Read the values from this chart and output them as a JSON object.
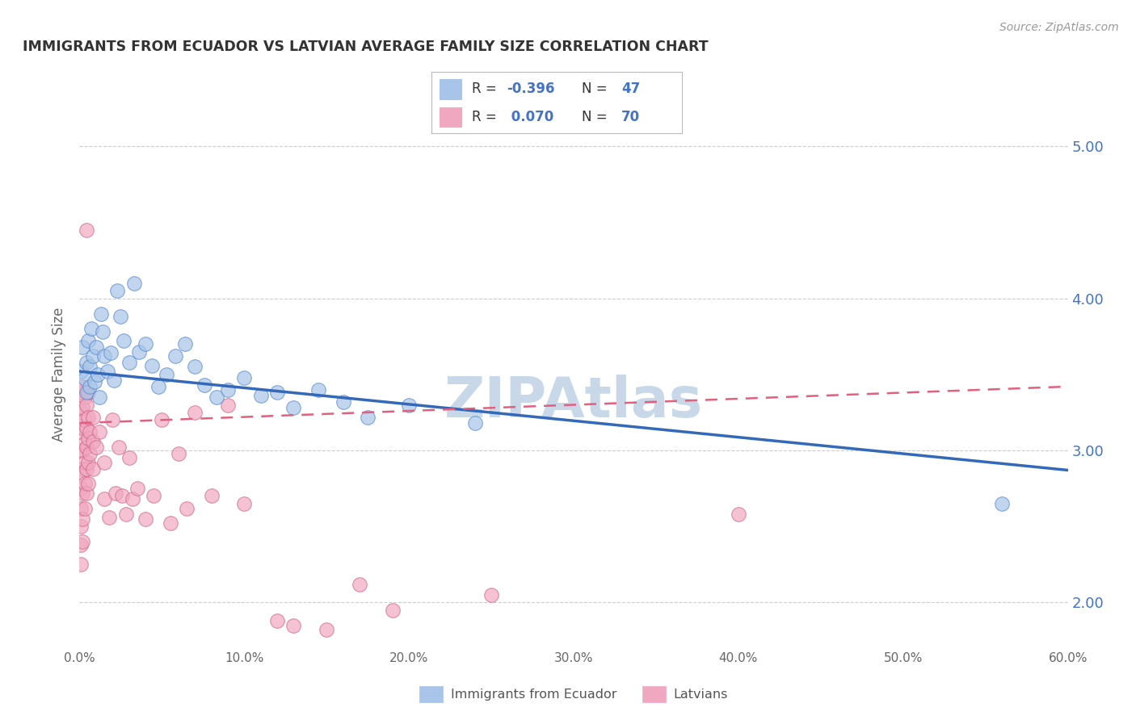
{
  "title": "IMMIGRANTS FROM ECUADOR VS LATVIAN AVERAGE FAMILY SIZE CORRELATION CHART",
  "source": "Source: ZipAtlas.com",
  "ylabel": "Average Family Size",
  "xlim": [
    0.0,
    0.6
  ],
  "ylim": [
    1.7,
    5.3
  ],
  "yticks_right": [
    2.0,
    3.0,
    4.0,
    5.0
  ],
  "watermark": "ZIPAtlas",
  "ecuador_scatter": [
    [
      0.001,
      3.52
    ],
    [
      0.002,
      3.68
    ],
    [
      0.003,
      3.47
    ],
    [
      0.004,
      3.58
    ],
    [
      0.004,
      3.38
    ],
    [
      0.005,
      3.72
    ],
    [
      0.006,
      3.55
    ],
    [
      0.006,
      3.42
    ],
    [
      0.007,
      3.8
    ],
    [
      0.008,
      3.62
    ],
    [
      0.009,
      3.45
    ],
    [
      0.01,
      3.68
    ],
    [
      0.011,
      3.5
    ],
    [
      0.012,
      3.35
    ],
    [
      0.013,
      3.9
    ],
    [
      0.014,
      3.78
    ],
    [
      0.015,
      3.62
    ],
    [
      0.017,
      3.52
    ],
    [
      0.019,
      3.64
    ],
    [
      0.021,
      3.46
    ],
    [
      0.023,
      4.05
    ],
    [
      0.025,
      3.88
    ],
    [
      0.027,
      3.72
    ],
    [
      0.03,
      3.58
    ],
    [
      0.033,
      4.1
    ],
    [
      0.036,
      3.65
    ],
    [
      0.04,
      3.7
    ],
    [
      0.044,
      3.56
    ],
    [
      0.048,
      3.42
    ],
    [
      0.053,
      3.5
    ],
    [
      0.058,
      3.62
    ],
    [
      0.064,
      3.7
    ],
    [
      0.07,
      3.55
    ],
    [
      0.076,
      3.43
    ],
    [
      0.083,
      3.35
    ],
    [
      0.09,
      3.4
    ],
    [
      0.1,
      3.48
    ],
    [
      0.11,
      3.36
    ],
    [
      0.12,
      3.38
    ],
    [
      0.13,
      3.28
    ],
    [
      0.145,
      3.4
    ],
    [
      0.16,
      3.32
    ],
    [
      0.175,
      3.22
    ],
    [
      0.2,
      3.3
    ],
    [
      0.24,
      3.18
    ],
    [
      0.56,
      2.65
    ]
  ],
  "latvian_scatter": [
    [
      0.001,
      3.38
    ],
    [
      0.001,
      3.25
    ],
    [
      0.001,
      3.12
    ],
    [
      0.001,
      3.0
    ],
    [
      0.001,
      2.88
    ],
    [
      0.001,
      2.75
    ],
    [
      0.001,
      2.62
    ],
    [
      0.001,
      2.5
    ],
    [
      0.001,
      2.38
    ],
    [
      0.001,
      2.25
    ],
    [
      0.002,
      3.42
    ],
    [
      0.002,
      3.28
    ],
    [
      0.002,
      3.15
    ],
    [
      0.002,
      3.0
    ],
    [
      0.002,
      2.85
    ],
    [
      0.002,
      2.72
    ],
    [
      0.002,
      2.55
    ],
    [
      0.002,
      2.4
    ],
    [
      0.003,
      3.35
    ],
    [
      0.003,
      3.2
    ],
    [
      0.003,
      3.05
    ],
    [
      0.003,
      2.92
    ],
    [
      0.003,
      2.78
    ],
    [
      0.003,
      2.62
    ],
    [
      0.004,
      4.45
    ],
    [
      0.004,
      3.3
    ],
    [
      0.004,
      3.15
    ],
    [
      0.004,
      3.02
    ],
    [
      0.004,
      2.88
    ],
    [
      0.004,
      2.72
    ],
    [
      0.005,
      3.38
    ],
    [
      0.005,
      3.22
    ],
    [
      0.005,
      3.08
    ],
    [
      0.005,
      2.92
    ],
    [
      0.005,
      2.78
    ],
    [
      0.006,
      3.12
    ],
    [
      0.006,
      2.98
    ],
    [
      0.008,
      3.22
    ],
    [
      0.008,
      3.06
    ],
    [
      0.008,
      2.88
    ],
    [
      0.01,
      3.02
    ],
    [
      0.012,
      3.12
    ],
    [
      0.015,
      2.92
    ],
    [
      0.015,
      2.68
    ],
    [
      0.018,
      2.56
    ],
    [
      0.02,
      3.2
    ],
    [
      0.022,
      2.72
    ],
    [
      0.024,
      3.02
    ],
    [
      0.026,
      2.7
    ],
    [
      0.028,
      2.58
    ],
    [
      0.03,
      2.95
    ],
    [
      0.032,
      2.68
    ],
    [
      0.035,
      2.75
    ],
    [
      0.04,
      2.55
    ],
    [
      0.045,
      2.7
    ],
    [
      0.05,
      3.2
    ],
    [
      0.055,
      2.52
    ],
    [
      0.06,
      2.98
    ],
    [
      0.065,
      2.62
    ],
    [
      0.07,
      3.25
    ],
    [
      0.08,
      2.7
    ],
    [
      0.09,
      3.3
    ],
    [
      0.1,
      2.65
    ],
    [
      0.12,
      1.88
    ],
    [
      0.13,
      1.85
    ],
    [
      0.15,
      1.82
    ],
    [
      0.17,
      2.12
    ],
    [
      0.19,
      1.95
    ],
    [
      0.25,
      2.05
    ],
    [
      0.4,
      2.58
    ]
  ],
  "ecuador_line_color": "#3468b8",
  "latvian_line_color": "#e06080",
  "ecuador_dot_color": "#a8c4e8",
  "latvian_dot_color": "#f0a8c0",
  "ecuador_dot_edge": "#5588cc",
  "latvian_dot_edge": "#d06888",
  "bg_color": "#ffffff",
  "grid_color": "#c0c0c0",
  "title_color": "#333333",
  "source_color": "#999999",
  "watermark_color": "#c8d8e8",
  "right_tick_color": "#4472c4"
}
